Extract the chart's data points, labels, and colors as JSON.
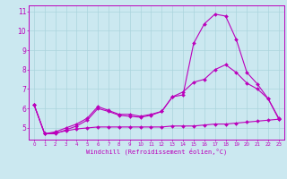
{
  "xlabel": "Windchill (Refroidissement éolien,°C)",
  "ylabel": "",
  "bg_color": "#cbe8f0",
  "grid_color": "#aad4dd",
  "line_color": "#bb00bb",
  "xlim": [
    -0.5,
    23.5
  ],
  "ylim": [
    4.4,
    11.3
  ],
  "xticks": [
    0,
    1,
    2,
    3,
    4,
    5,
    6,
    7,
    8,
    9,
    10,
    11,
    12,
    13,
    14,
    15,
    16,
    17,
    18,
    19,
    20,
    21,
    22,
    23
  ],
  "yticks": [
    5,
    6,
    7,
    8,
    9,
    10,
    11
  ],
  "line1_x": [
    0,
    1,
    2,
    3,
    4,
    5,
    6,
    7,
    8,
    9,
    10,
    11,
    12,
    13,
    14,
    15,
    16,
    17,
    18,
    19,
    20,
    21,
    22,
    23
  ],
  "line1_y": [
    6.2,
    4.7,
    4.7,
    4.9,
    5.1,
    5.4,
    6.0,
    5.85,
    5.65,
    5.6,
    5.55,
    5.65,
    5.85,
    6.6,
    6.7,
    9.35,
    10.35,
    10.85,
    10.75,
    9.55,
    7.85,
    7.25,
    6.5,
    5.45
  ],
  "line2_x": [
    0,
    1,
    2,
    3,
    4,
    5,
    6,
    7,
    8,
    9,
    10,
    11,
    12,
    13,
    14,
    15,
    16,
    17,
    18,
    19,
    20,
    21,
    22,
    23
  ],
  "line2_y": [
    6.2,
    4.7,
    4.8,
    5.0,
    5.2,
    5.5,
    6.1,
    5.9,
    5.7,
    5.7,
    5.6,
    5.7,
    5.85,
    6.6,
    6.85,
    7.35,
    7.5,
    8.0,
    8.25,
    7.85,
    7.3,
    7.0,
    6.5,
    5.5
  ],
  "line3_x": [
    0,
    1,
    2,
    3,
    4,
    5,
    6,
    7,
    8,
    9,
    10,
    11,
    12,
    13,
    14,
    15,
    16,
    17,
    18,
    19,
    20,
    21,
    22,
    23
  ],
  "line3_y": [
    6.2,
    4.7,
    4.75,
    4.85,
    4.95,
    5.0,
    5.05,
    5.05,
    5.05,
    5.05,
    5.05,
    5.05,
    5.05,
    5.1,
    5.1,
    5.1,
    5.15,
    5.2,
    5.2,
    5.25,
    5.3,
    5.35,
    5.4,
    5.45
  ]
}
